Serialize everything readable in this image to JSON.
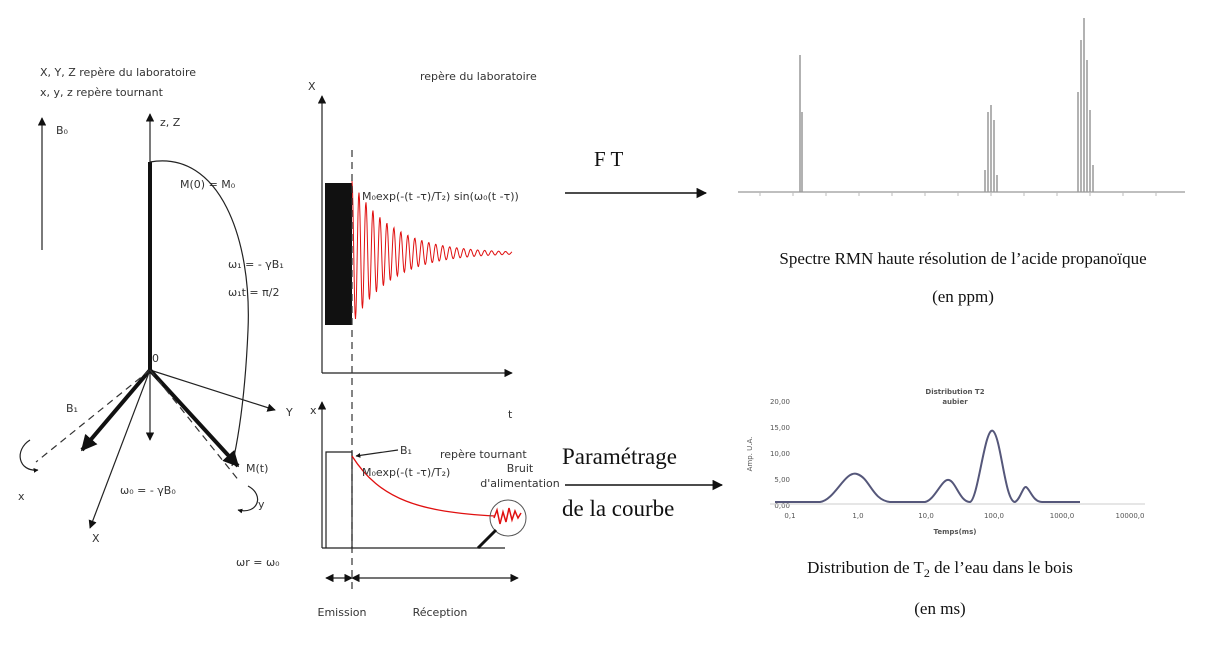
{
  "lab_frame": {
    "legend_line1": "X, Y, Z repère du laboratoire",
    "legend_line2": "x, y, z repère tournant",
    "b0": "B₀",
    "z_axis": "z, Z",
    "m0": "M(0) = M₀",
    "omega1": "ω₁ = - γB₁",
    "omega1t": "ω₁t = π/2",
    "origin": "0",
    "b1": "B₁",
    "y_upper": "Y",
    "x_lower": "x",
    "x_upper": "X",
    "y_lower": "y",
    "mt": "M(t)",
    "omega0": "ω₀ = - γB₀",
    "omegar": "ωr = ω₀"
  },
  "signal": {
    "lab_title": "repère du laboratoire",
    "lab_axis": "X",
    "lab_formula": "M₀exp(-(t -τ)/T₂) sin(ω₀(t -τ))",
    "time_axis": "t",
    "rot_axis": "x",
    "rot_b1": "B₁",
    "rot_title": "repère tournant",
    "rot_formula": "M₀exp(-(t -τ)/T₂)",
    "noise_line1": "Bruit",
    "noise_line2": "d'alimentation",
    "emission": "Emission",
    "reception": "Réception"
  },
  "transforms": {
    "ft": "F T",
    "fit_line1": "Paramétrage",
    "fit_line2": "de la courbe"
  },
  "spectrum": {
    "caption_line1": "Spectre RMN haute résolution de l’acide propanoïque",
    "caption_line2": "(en ppm)"
  },
  "distribution": {
    "title_line1": "Distribution T2",
    "title_line2": "aubier",
    "y_axis_title": "Amp. U.A.",
    "x_axis_title": "Temps(ms)",
    "y_labels": [
      "20,00",
      "15,00",
      "10,00",
      "5,00",
      "0,00"
    ],
    "x_labels": [
      "0,1",
      "1,0",
      "10,0",
      "100,0",
      "1000,0",
      "10000,0"
    ],
    "caption_prefix": "Distribution de T",
    "caption_sub": "2",
    "caption_suffix": " de l’eau dans le bois",
    "caption_line2": "(en ms)"
  }
}
